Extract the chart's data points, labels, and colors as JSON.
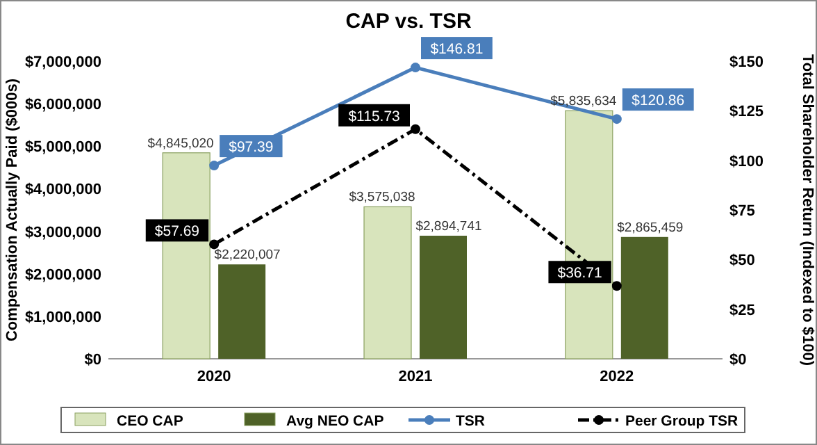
{
  "chart_data": {
    "type": "bar",
    "title": "CAP vs. TSR",
    "ylabel": "Compensation Actually Paid ($000s)",
    "y2label": "Total Shareholder Return (Indexed to $100)",
    "categories": [
      "2020",
      "2021",
      "2022"
    ],
    "series": [
      {
        "name": "CEO CAP",
        "color": "#d8e4bc",
        "values": [
          4845020,
          3575038,
          5835634
        ],
        "value_labels": [
          "$4,845,020",
          "$3,575,038",
          "$5,835,634"
        ]
      },
      {
        "name": "Avg NEO CAP",
        "color": "#4f6228",
        "values": [
          2220007,
          2894741,
          2865459
        ],
        "value_labels": [
          "$2,220,007",
          "$2,894,741",
          "$2,865,459"
        ]
      },
      {
        "name": "TSR",
        "type": "line",
        "axis": "y2",
        "color": "#4a7ebb",
        "marker": "circle",
        "line_style": "solid",
        "values": [
          97.39,
          146.81,
          120.86
        ],
        "value_labels": [
          "$97.39",
          "$146.81",
          "$120.86"
        ]
      },
      {
        "name": "Peer Group TSR",
        "type": "line",
        "axis": "y2",
        "color": "#000000",
        "marker": "circle",
        "line_style": "dashed",
        "values": [
          57.69,
          115.73,
          36.71
        ],
        "value_labels": [
          "$57.69",
          "$115.73",
          "$36.71"
        ]
      }
    ],
    "ylim": [
      0,
      7000000
    ],
    "yticks": [
      {
        "value": 0,
        "label": "$0"
      },
      {
        "value": 1000000,
        "label": "$1,000,000"
      },
      {
        "value": 2000000,
        "label": "$2,000,000"
      },
      {
        "value": 3000000,
        "label": "$3,000,000"
      },
      {
        "value": 4000000,
        "label": "$4,000,000"
      },
      {
        "value": 5000000,
        "label": "$5,000,000"
      },
      {
        "value": 6000000,
        "label": "$6,000,000"
      },
      {
        "value": 7000000,
        "label": "$7,000,000"
      }
    ],
    "y2lim": [
      0,
      150
    ],
    "y2ticks": [
      {
        "value": 0,
        "label": "$0"
      },
      {
        "value": 25,
        "label": "$25"
      },
      {
        "value": 50,
        "label": "$50"
      },
      {
        "value": 75,
        "label": "$75"
      },
      {
        "value": 100,
        "label": "$100"
      },
      {
        "value": 125,
        "label": "$125"
      },
      {
        "value": 150,
        "label": "$150"
      }
    ],
    "legend": "bottom"
  }
}
